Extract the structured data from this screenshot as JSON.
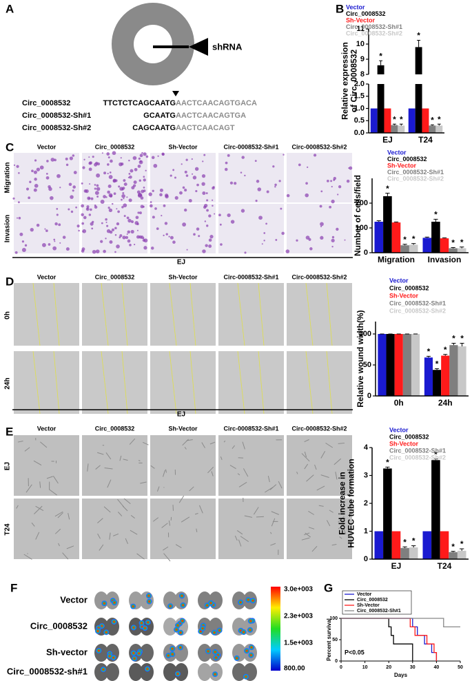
{
  "panel_labels": [
    "A",
    "B",
    "C",
    "D",
    "E",
    "F",
    "G"
  ],
  "panel_a": {
    "target": "shRNA",
    "sequences": [
      {
        "name": "Circ_0008532",
        "match": "TTCTCTCAGCAATG",
        "rest": "AACTCAACAGTGACA"
      },
      {
        "name": "Circ_0008532-Sh#1",
        "match": "GCAATG",
        "rest": "AACTCAACAGTGA"
      },
      {
        "name": "Circ_0008532-Sh#2",
        "match": "CAGCAATG",
        "rest": "AACTCAACAGT"
      }
    ]
  },
  "image_panels": {
    "columns": [
      "Vector",
      "Circ_0008532",
      "Sh-Vector",
      "Circ-0008532-Sh#1",
      "Circ-0008532-Sh#2"
    ],
    "c_rows": [
      "Migration",
      "Invasion"
    ],
    "c_cell_line": "EJ",
    "d_rows": [
      "0h",
      "24h"
    ],
    "d_cell_line": "EJ",
    "e_rows": [
      "EJ",
      "T24"
    ]
  },
  "panel_f": {
    "rows": [
      "Vector",
      "Circ_0008532",
      "Sh-vector",
      "Circ_0008532-sh#1"
    ],
    "colorbar": [
      "3.0e+003",
      "2.3e+003",
      "1.5e+003",
      "800.00"
    ]
  },
  "chart_data": [
    {
      "type": "bar",
      "ylabel": [
        "Relative expression",
        "of Circ_0008532"
      ],
      "categories": [
        "EJ",
        "T24"
      ],
      "series": [
        {
          "name": "Vector",
          "color": "#1a1ad0",
          "values": [
            1,
            1
          ]
        },
        {
          "name": "Circ_0008532",
          "color": "#000000",
          "values": [
            8.6,
            9.8
          ],
          "errors": [
            0.3,
            0.45
          ],
          "annotations": [
            "*",
            "*"
          ]
        },
        {
          "name": "Sh-Vector",
          "color": "#ff1a1a",
          "values": [
            1,
            1
          ]
        },
        {
          "name": "Circ_0008532-Sh#1",
          "color": "#7f7f7f",
          "values": [
            0.32,
            0.3
          ],
          "errors": [
            0.04,
            0.03
          ],
          "annotations": [
            "*",
            "*"
          ]
        },
        {
          "name": "Circ_0008532-Sh#2",
          "color": "#c8c8c8",
          "values": [
            0.3,
            0.3
          ],
          "errors": [
            0.06,
            0.06
          ],
          "annotations": [
            "*",
            "*"
          ]
        }
      ],
      "ylim": [
        0,
        11
      ],
      "axis_break": [
        2,
        8
      ],
      "yticks": [
        {
          "value": 0,
          "label": "0.0"
        },
        {
          "value": 0.5,
          "label": "0.5"
        },
        {
          "value": 1,
          "label": "1.0"
        },
        {
          "value": 1.5,
          "label": "1.5"
        },
        {
          "value": 2,
          "label": "2.0"
        },
        8,
        9,
        10,
        11
      ]
    },
    {
      "type": "bar",
      "ylabel": [
        "Number of cells/field"
      ],
      "categories": [
        "Migration",
        "Invasion"
      ],
      "series": [
        {
          "name": "Vector",
          "color": "#1a1ad0",
          "values": [
            125,
            60
          ],
          "errors": [
            4,
            3
          ]
        },
        {
          "name": "Circ_0008532",
          "color": "#000000",
          "values": [
            228,
            125
          ],
          "errors": [
            12,
            10
          ],
          "annotations": [
            "*",
            "*"
          ]
        },
        {
          "name": "Sh-Vector",
          "color": "#ff1a1a",
          "values": [
            122,
            58
          ],
          "errors": [
            2,
            2
          ]
        },
        {
          "name": "Circ_0008532-Sh#1",
          "color": "#7f7f7f",
          "values": [
            30,
            18
          ],
          "errors": [
            4,
            3
          ],
          "annotations": [
            "*",
            "*"
          ]
        },
        {
          "name": "Circ_0008532-Sh#2",
          "color": "#c8c8c8",
          "values": [
            32,
            18
          ],
          "errors": [
            5,
            5
          ],
          "annotations": [
            "*",
            "*"
          ]
        }
      ],
      "ylim": [
        0,
        300
      ],
      "yticks": [
        0,
        100,
        200
      ]
    },
    {
      "type": "bar",
      "ylabel": [
        "Relative wound width(%)"
      ],
      "categories": [
        "0h",
        "24h"
      ],
      "series": [
        {
          "name": "Vector",
          "color": "#1a1ad0",
          "values": [
            100,
            62
          ],
          "errors": [
            0,
            2
          ],
          "annotations": [
            null,
            "*"
          ]
        },
        {
          "name": "Circ_0008532",
          "color": "#000000",
          "values": [
            100,
            42
          ],
          "errors": [
            0,
            2
          ],
          "annotations": [
            null,
            "*"
          ]
        },
        {
          "name": "Sh-Vector",
          "color": "#ff1a1a",
          "values": [
            100,
            65
          ],
          "errors": [
            0,
            2
          ],
          "annotations": [
            null,
            "*"
          ]
        },
        {
          "name": "Circ_0008532-Sh#1",
          "color": "#7f7f7f",
          "values": [
            100,
            82
          ],
          "errors": [
            0,
            3
          ],
          "annotations": [
            null,
            "*"
          ]
        },
        {
          "name": "Circ_0008532-Sh#2",
          "color": "#c8c8c8",
          "values": [
            100,
            80
          ],
          "errors": [
            0,
            5
          ],
          "annotations": [
            null,
            "*"
          ]
        }
      ],
      "ylim": [
        0,
        120
      ],
      "yticks": [
        0,
        50,
        100
      ]
    },
    {
      "type": "bar",
      "ylabel": [
        "Fold increase in",
        "HUVEC tube formation"
      ],
      "categories": [
        "EJ",
        "T24"
      ],
      "series": [
        {
          "name": "Vector",
          "color": "#1a1ad0",
          "values": [
            1,
            1
          ]
        },
        {
          "name": "Circ_0008532",
          "color": "#000000",
          "values": [
            3.25,
            3.55
          ],
          "errors": [
            0.05,
            0.04
          ],
          "annotations": [
            "*",
            "*"
          ]
        },
        {
          "name": "Sh-Vector",
          "color": "#ff1a1a",
          "values": [
            1,
            1
          ]
        },
        {
          "name": "Circ_0008532-Sh#1",
          "color": "#7f7f7f",
          "values": [
            0.4,
            0.25
          ],
          "errors": [
            0.04,
            0.03
          ],
          "annotations": [
            "*",
            "*"
          ]
        },
        {
          "name": "Circ_0008532-Sh#2",
          "color": "#c8c8c8",
          "values": [
            0.42,
            0.3
          ],
          "errors": [
            0.06,
            0.07
          ],
          "annotations": [
            "*",
            "*"
          ]
        }
      ],
      "ylim": [
        0,
        4
      ],
      "yticks": [
        0,
        1,
        2,
        3,
        4
      ]
    },
    {
      "type": "line",
      "xlabel": "Days",
      "ylabel": [
        "Percent survival"
      ],
      "annotation": "P<0.05",
      "series": [
        {
          "name": "Vector",
          "color": "#1a1ad0",
          "x": [
            0,
            30,
            30,
            32,
            32,
            35,
            35,
            38,
            38,
            40,
            40
          ],
          "values": [
            100,
            100,
            80,
            80,
            60,
            60,
            40,
            40,
            20,
            20,
            0
          ]
        },
        {
          "name": "Circ_0008532",
          "color": "#000000",
          "x": [
            0,
            20,
            20,
            21,
            21,
            22,
            22,
            30,
            30
          ],
          "values": [
            100,
            100,
            80,
            80,
            60,
            60,
            40,
            40,
            0
          ]
        },
        {
          "name": "Sh-Vector",
          "color": "#ff1a1a",
          "x": [
            0,
            29,
            29,
            31,
            31,
            36,
            36,
            39,
            39,
            40,
            40
          ],
          "values": [
            100,
            100,
            80,
            80,
            60,
            60,
            40,
            40,
            20,
            20,
            0
          ]
        },
        {
          "name": "Circ_0008532-Sh#1",
          "color": "#888888",
          "x": [
            0,
            43,
            43,
            50
          ],
          "values": [
            100,
            100,
            80,
            80
          ]
        }
      ],
      "xlim": [
        0,
        50
      ],
      "xticks": [
        0,
        10,
        20,
        30,
        40,
        50
      ],
      "ylim": [
        0,
        100
      ],
      "yticks": [
        0,
        50,
        100
      ]
    }
  ]
}
